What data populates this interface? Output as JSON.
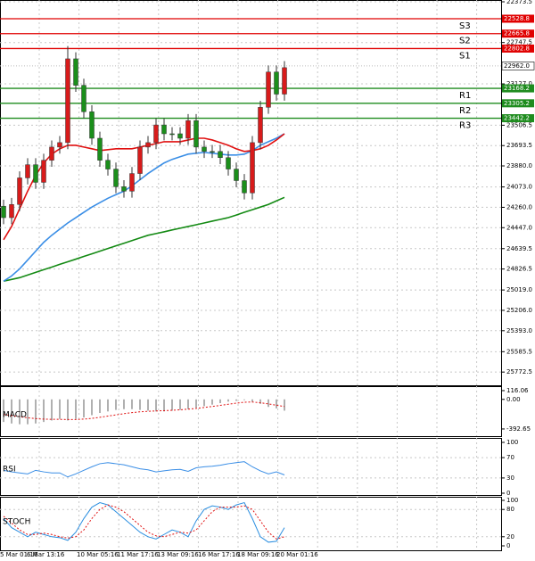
{
  "chart_data": [
    {
      "type": "candlestick",
      "open": [
        24250,
        24355,
        24234,
        23990,
        23869,
        24031,
        23828,
        23707,
        23666,
        22897,
        23140,
        23383,
        23626,
        23828,
        23909,
        24071,
        24112,
        23950,
        23707,
        23666,
        23504,
        23585,
        23585,
        23626,
        23464,
        23707,
        23747,
        23747,
        23804,
        23909,
        24015,
        24128,
        23666,
        23342,
        23018,
        23221
      ],
      "high": [
        24415,
        24415,
        24294,
        24050,
        24091,
        24091,
        23888,
        23767,
        23726,
        23200,
        23443,
        23686,
        23888,
        23969,
        24131,
        24172,
        24172,
        24010,
        23767,
        23726,
        23645,
        23645,
        23686,
        23686,
        23767,
        23807,
        23807,
        23864,
        23969,
        24075,
        24188,
        24188,
        23726,
        23402,
        23281,
        23281
      ],
      "low": [
        24190,
        24174,
        23930,
        23809,
        23809,
        23768,
        23647,
        23606,
        22780,
        22837,
        23080,
        23323,
        23566,
        23768,
        23849,
        24011,
        23890,
        23647,
        23606,
        23444,
        23444,
        23525,
        23525,
        23404,
        23404,
        23647,
        23687,
        23687,
        23744,
        23849,
        23955,
        23606,
        23282,
        22958,
        22958,
        22918
      ],
      "close": [
        24355,
        24234,
        23990,
        23869,
        24031,
        23828,
        23707,
        23666,
        22897,
        23140,
        23383,
        23626,
        23828,
        23909,
        24071,
        24112,
        23950,
        23707,
        23666,
        23504,
        23585,
        23585,
        23626,
        23464,
        23707,
        23747,
        23747,
        23804,
        23909,
        24015,
        24128,
        23666,
        23342,
        23018,
        23221,
        22978
      ],
      "up_color": "#1b8f1b",
      "down_color": "#d81b1b",
      "series": [
        {
          "color": "#138a13",
          "values": [
            24938,
            24922,
            24906,
            24882,
            24857,
            24833,
            24809,
            24784,
            24760,
            24736,
            24711,
            24687,
            24663,
            24638,
            24614,
            24590,
            24566,
            24541,
            24517,
            24501,
            24485,
            24468,
            24452,
            24436,
            24420,
            24404,
            24387,
            24371,
            24355,
            24331,
            24306,
            24282,
            24258,
            24234,
            24201,
            24169
          ]
        },
        {
          "color": "#3a8ee6",
          "values": [
            24938,
            24890,
            24825,
            24744,
            24663,
            24582,
            24517,
            24460,
            24404,
            24355,
            24306,
            24258,
            24217,
            24177,
            24144,
            24112,
            24063,
            24007,
            23950,
            23901,
            23853,
            23820,
            23796,
            23772,
            23764,
            23756,
            23764,
            23772,
            23780,
            23780,
            23772,
            23739,
            23691,
            23658,
            23626,
            23585
          ]
        },
        {
          "color": "#e01010",
          "values": [
            24558,
            24436,
            24274,
            24112,
            23966,
            23853,
            23772,
            23723,
            23691,
            23691,
            23707,
            23723,
            23739,
            23731,
            23723,
            23723,
            23723,
            23707,
            23691,
            23675,
            23658,
            23658,
            23658,
            23642,
            23626,
            23626,
            23642,
            23666,
            23691,
            23723,
            23747,
            23739,
            23723,
            23691,
            23642,
            23585
          ]
        }
      ],
      "ylim": [
        22357,
        25894
      ],
      "yticks": [
        {
          "value": 25772.5,
          "label": "25772.5"
        },
        {
          "value": 25585.5,
          "label": "25585.5"
        },
        {
          "value": 25393,
          "label": "25393.0"
        },
        {
          "value": 25206,
          "label": "25206.0"
        },
        {
          "value": 25019,
          "label": "25019.0"
        },
        {
          "value": 24826.5,
          "label": "24826.5"
        },
        {
          "value": 24639.5,
          "label": "24639.5"
        },
        {
          "value": 24447,
          "label": "24447.0"
        },
        {
          "value": 24260,
          "label": "24260.0"
        },
        {
          "value": 24073,
          "label": "24073.0"
        },
        {
          "value": 23880,
          "label": "23880.0"
        },
        {
          "value": 23693.5,
          "label": "23693.5"
        },
        {
          "value": 23506.5,
          "label": "23506.5"
        },
        {
          "value": 23127,
          "label": "23127.0"
        },
        {
          "value": 22747.5,
          "label": "22747.5"
        },
        {
          "value": 22373.5,
          "label": "22373.5"
        }
      ],
      "levels": [
        {
          "name": "R3",
          "value": 23442.2,
          "color": "#1e8c1e"
        },
        {
          "name": "R2",
          "value": 23305.2,
          "color": "#1e8c1e"
        },
        {
          "name": "R1",
          "value": 23168.2,
          "color": "#1e8c1e"
        },
        {
          "name": "S1",
          "value": 22802.8,
          "color": "#e00000"
        },
        {
          "name": "S2",
          "value": 22665.8,
          "color": "#e00000"
        },
        {
          "name": "S3",
          "value": 22528.8,
          "color": "#e00000"
        }
      ],
      "current_price": {
        "value": 22962,
        "label": "22962.0"
      },
      "x_labels": [
        "5 Mar 01:16",
        "6 Mar 13:16",
        "10 Mar 05:16",
        "11 Mar 17:16",
        "13 Mar 09:16",
        "16 Mar 17:16",
        "18 Mar 09:16",
        "20 Mar 01:16"
      ],
      "grid": true
    },
    {
      "type": "macd",
      "title": "MACD",
      "values": [
        -300,
        -320,
        -330,
        -330,
        -320,
        -300,
        -280,
        -260,
        -280,
        -260,
        -240,
        -210,
        -180,
        -160,
        -140,
        -130,
        -130,
        -140,
        -150,
        -160,
        -160,
        -150,
        -140,
        -130,
        -110,
        -90,
        -70,
        -50,
        -30,
        -20,
        -10,
        -30,
        -60,
        -100,
        -120,
        -150
      ],
      "color": "#b0b0b0",
      "signal": [
        -200,
        -215,
        -230,
        -245,
        -255,
        -262,
        -265,
        -265,
        -268,
        -268,
        -262,
        -252,
        -238,
        -222,
        -206,
        -190,
        -176,
        -165,
        -158,
        -154,
        -150,
        -145,
        -138,
        -130,
        -120,
        -108,
        -94,
        -80,
        -65,
        -50,
        -38,
        -35,
        -45,
        -60,
        -78,
        -95
      ],
      "signal_color": "#e01010",
      "ylim": [
        163,
        -476
      ],
      "yticks": [
        116.06,
        {
          "value": 0,
          "label": "0.00"
        },
        -392.65
      ]
    },
    {
      "type": "rsi",
      "title": "RSI",
      "values": [
        45,
        42,
        40,
        38,
        45,
        42,
        40,
        40,
        32,
        38,
        45,
        52,
        58,
        60,
        58,
        56,
        52,
        48,
        46,
        42,
        44,
        46,
        47,
        43,
        50,
        52,
        53,
        55,
        58,
        60,
        62,
        52,
        44,
        38,
        42,
        36
      ],
      "color": "#3a8ee6",
      "ylim": [
        100,
        0
      ],
      "yticks": [
        100,
        70,
        30,
        0
      ]
    },
    {
      "type": "stoch",
      "title": "STOCH",
      "values": [
        60,
        40,
        30,
        20,
        30,
        25,
        20,
        18,
        12,
        30,
        60,
        85,
        95,
        90,
        75,
        60,
        45,
        30,
        20,
        15,
        25,
        35,
        30,
        20,
        55,
        80,
        88,
        85,
        80,
        90,
        95,
        60,
        20,
        8,
        10,
        40
      ],
      "color": "#2a8ee0",
      "signal": [
        65,
        50,
        35,
        25,
        25,
        28,
        25,
        20,
        17,
        20,
        35,
        60,
        80,
        90,
        85,
        75,
        60,
        45,
        30,
        22,
        20,
        25,
        30,
        28,
        35,
        55,
        75,
        85,
        85,
        85,
        88,
        80,
        55,
        30,
        15,
        20
      ],
      "signal_color": "#e01010",
      "ylim": [
        100,
        0
      ],
      "yticks": [
        100,
        80,
        20,
        0
      ]
    }
  ]
}
